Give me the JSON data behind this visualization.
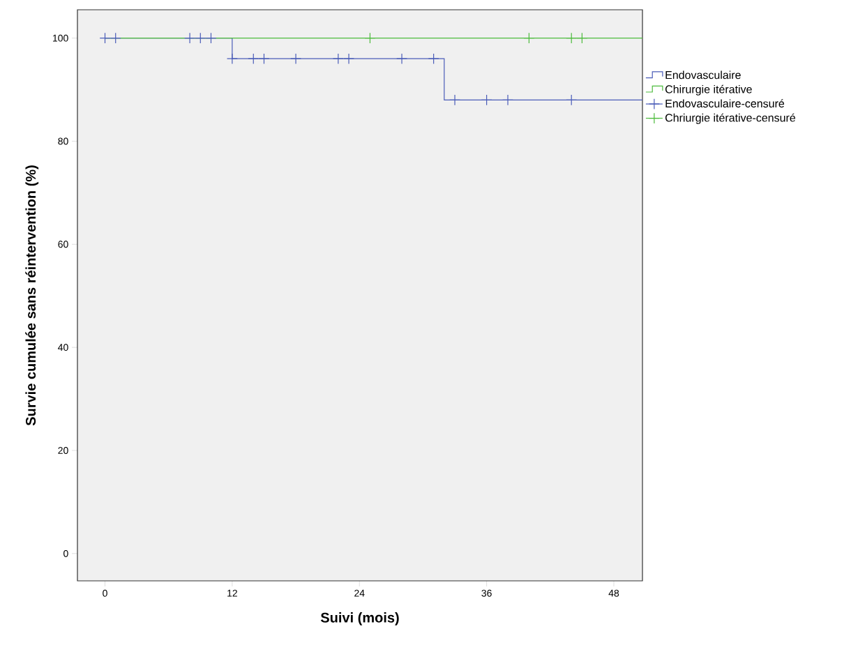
{
  "chart_data": {
    "type": "step",
    "xlabel": "Suivi (mois)",
    "ylabel": "Survie cumulée sans réintervention (%)",
    "xlim": [
      -2.6,
      50.7
    ],
    "ylim": [
      -5.3,
      105.5
    ],
    "xticks": [
      0,
      12,
      24,
      36,
      48
    ],
    "yticks": [
      0,
      20,
      40,
      60,
      80,
      100
    ],
    "legend": "right",
    "series": [
      {
        "name": "Endovasculaire",
        "color": "#4a5cb8",
        "x": [
          0,
          12,
          32,
          50.7
        ],
        "values": [
          100,
          96,
          88,
          88
        ]
      },
      {
        "name": "Chirurgie itérative",
        "color": "#4cbb3c",
        "x": [
          0,
          50.7
        ],
        "values": [
          100,
          100
        ]
      },
      {
        "name": "Endovasculaire-censuré",
        "type": "scatter",
        "marker": "cross",
        "color": "#4a5cb8",
        "x": [
          0,
          1,
          8,
          9,
          10,
          12,
          14,
          15,
          18,
          22,
          23,
          28,
          31,
          33,
          36,
          38,
          44
        ],
        "values": [
          100,
          100,
          100,
          100,
          100,
          96,
          96,
          96,
          96,
          96,
          96,
          96,
          96,
          88,
          88,
          88,
          88
        ]
      },
      {
        "name": "Chriurgie itérative-censuré",
        "type": "scatter",
        "marker": "cross",
        "color": "#4cbb3c",
        "x": [
          25,
          40,
          44,
          45
        ],
        "values": [
          100,
          100,
          100,
          100
        ]
      }
    ]
  }
}
